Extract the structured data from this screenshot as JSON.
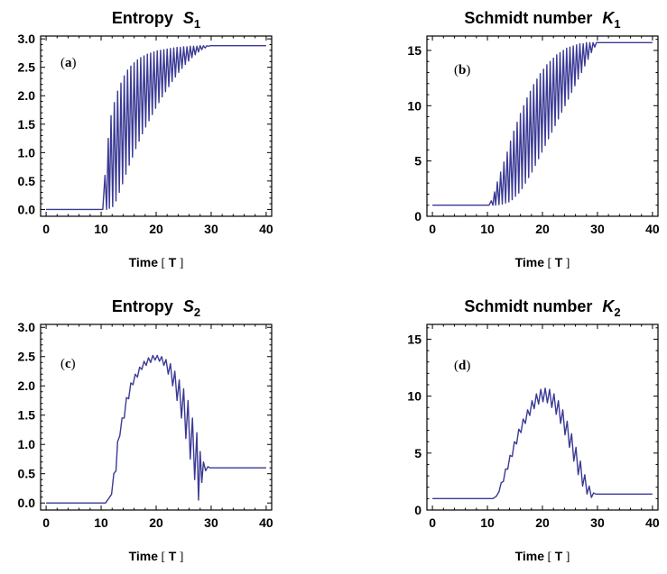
{
  "figure": {
    "line_color": "#3b3a95"
  },
  "chart_data": [
    {
      "type": "line",
      "id": "a",
      "title": "Entropy",
      "title_symbol": "S",
      "title_subscript": "1",
      "panel_label": "a",
      "xlabel": "Time",
      "xlabel_unit": "T",
      "xlim": [
        -1,
        41
      ],
      "ylim": [
        -0.12,
        3.05
      ],
      "xticks": [
        0,
        10,
        20,
        30,
        40
      ],
      "xtick_labels": [
        "0",
        "10",
        "20",
        "30",
        "40"
      ],
      "yticks": [
        0,
        0.5,
        1,
        1.5,
        2,
        2.5,
        3
      ],
      "ytick_labels": [
        "0.0",
        "0.5",
        "1.0",
        "1.5",
        "2.0",
        "2.5",
        "3.0"
      ],
      "grid": false,
      "series": [
        {
          "x": [
            0,
            10.3,
            10.7,
            11.0,
            11.3,
            11.5,
            11.8,
            12.1,
            12.4,
            12.7,
            13.0,
            13.3,
            13.6,
            13.9,
            14.2,
            14.5,
            14.8,
            15.1,
            15.4,
            15.7,
            16.0,
            16.3,
            16.6,
            16.9,
            17.2,
            17.5,
            17.8,
            18.1,
            18.4,
            18.7,
            19.0,
            19.3,
            19.6,
            19.9,
            20.2,
            20.5,
            20.8,
            21.1,
            21.4,
            21.7,
            22.0,
            22.3,
            22.6,
            22.9,
            23.2,
            23.5,
            23.8,
            24.1,
            24.4,
            24.7,
            25.0,
            25.3,
            25.6,
            25.9,
            26.2,
            26.5,
            26.8,
            27.1,
            27.4,
            27.7,
            28.0,
            28.3,
            28.6,
            28.9,
            29.2,
            29.5,
            29.8,
            30.1,
            30.5,
            40
          ],
          "y": [
            0,
            0,
            0.6,
            0,
            1.25,
            0.02,
            1.65,
            0.05,
            1.88,
            0.15,
            2.08,
            0.3,
            2.22,
            0.45,
            2.35,
            0.62,
            2.45,
            0.78,
            2.52,
            0.92,
            2.58,
            1.07,
            2.63,
            1.2,
            2.67,
            1.33,
            2.7,
            1.45,
            2.73,
            1.56,
            2.75,
            1.67,
            2.77,
            1.78,
            2.79,
            1.88,
            2.8,
            1.98,
            2.81,
            2.07,
            2.82,
            2.16,
            2.83,
            2.25,
            2.84,
            2.33,
            2.85,
            2.41,
            2.85,
            2.48,
            2.86,
            2.55,
            2.86,
            2.61,
            2.87,
            2.67,
            2.87,
            2.72,
            2.87,
            2.77,
            2.88,
            2.81,
            2.88,
            2.84,
            2.88,
            2.87,
            2.88,
            2.88,
            2.88,
            2.88
          ]
        }
      ]
    },
    {
      "type": "line",
      "id": "b",
      "title": "Schmidt number",
      "title_symbol": "K",
      "title_subscript": "1",
      "panel_label": "b",
      "xlabel": "Time",
      "xlabel_unit": "T",
      "xlim": [
        -1,
        41
      ],
      "ylim": [
        0,
        16.3
      ],
      "xticks": [
        0,
        10,
        20,
        30,
        40
      ],
      "xtick_labels": [
        "0",
        "10",
        "20",
        "30",
        "40"
      ],
      "yticks": [
        0,
        5,
        10,
        15
      ],
      "ytick_labels": [
        "0",
        "5",
        "10",
        "15"
      ],
      "grid": false,
      "series": [
        {
          "x": [
            0,
            10.3,
            10.7,
            11.0,
            11.3,
            11.5,
            11.8,
            12.1,
            12.4,
            12.7,
            13.0,
            13.3,
            13.6,
            13.9,
            14.2,
            14.5,
            14.8,
            15.1,
            15.4,
            15.7,
            16.0,
            16.3,
            16.6,
            16.9,
            17.2,
            17.5,
            17.8,
            18.1,
            18.4,
            18.7,
            19.0,
            19.3,
            19.6,
            19.9,
            20.2,
            20.5,
            20.8,
            21.1,
            21.4,
            21.7,
            22.0,
            22.3,
            22.6,
            22.9,
            23.2,
            23.5,
            23.8,
            24.1,
            24.4,
            24.7,
            25.0,
            25.3,
            25.6,
            25.9,
            26.2,
            26.5,
            26.8,
            27.1,
            27.4,
            27.7,
            28.0,
            28.3,
            28.6,
            28.9,
            29.2,
            29.5,
            29.8,
            30.1,
            30.5,
            40
          ],
          "y": [
            1,
            1,
            1.4,
            1,
            2.2,
            1,
            3.1,
            1.05,
            4.0,
            1.1,
            4.9,
            1.2,
            5.8,
            1.3,
            6.8,
            1.5,
            7.7,
            1.8,
            8.5,
            2.1,
            9.3,
            2.5,
            10.0,
            3.0,
            10.7,
            3.5,
            11.3,
            4.0,
            11.9,
            4.6,
            12.4,
            5.2,
            12.9,
            5.8,
            13.3,
            6.4,
            13.7,
            7.0,
            14.0,
            7.6,
            14.3,
            8.2,
            14.6,
            8.8,
            14.8,
            9.4,
            15.0,
            10.0,
            15.2,
            10.6,
            15.3,
            11.2,
            15.4,
            11.8,
            15.5,
            12.4,
            15.6,
            13.0,
            15.6,
            13.6,
            15.7,
            14.2,
            15.7,
            14.8,
            15.7,
            15.3,
            15.7,
            15.7,
            15.7,
            15.7
          ]
        }
      ]
    },
    {
      "type": "line",
      "id": "c",
      "title": "Entropy",
      "title_symbol": "S",
      "title_subscript": "2",
      "panel_label": "c",
      "xlabel": "Time",
      "xlabel_unit": "T",
      "xlim": [
        -1,
        41
      ],
      "ylim": [
        -0.12,
        3.05
      ],
      "xticks": [
        0,
        10,
        20,
        30,
        40
      ],
      "xtick_labels": [
        "0",
        "10",
        "20",
        "30",
        "40"
      ],
      "yticks": [
        0,
        0.5,
        1,
        1.5,
        2,
        2.5,
        3
      ],
      "ytick_labels": [
        "0.0",
        "0.5",
        "1.0",
        "1.5",
        "2.0",
        "2.5",
        "3.0"
      ],
      "grid": false,
      "series": [
        {
          "x": [
            0,
            10.8,
            11.4,
            11.9,
            12.3,
            12.7,
            13.0,
            13.4,
            13.8,
            14.2,
            14.6,
            15.0,
            15.4,
            15.8,
            16.2,
            16.6,
            17.0,
            17.4,
            17.8,
            18.2,
            18.6,
            19.0,
            19.4,
            19.8,
            20.2,
            20.6,
            21.0,
            21.4,
            21.8,
            22.2,
            22.6,
            23.0,
            23.4,
            23.8,
            24.2,
            24.6,
            25.0,
            25.4,
            25.8,
            26.2,
            26.6,
            27.0,
            27.4,
            27.7,
            28.0,
            28.3,
            28.6,
            29.0,
            29.4,
            29.8,
            30.2,
            40
          ],
          "y": [
            0,
            0,
            0.08,
            0.15,
            0.5,
            0.55,
            1.05,
            1.15,
            1.45,
            1.45,
            1.8,
            1.78,
            2.05,
            2.02,
            2.2,
            2.15,
            2.32,
            2.28,
            2.42,
            2.35,
            2.48,
            2.4,
            2.52,
            2.44,
            2.52,
            2.42,
            2.5,
            2.35,
            2.45,
            2.2,
            2.38,
            2.0,
            2.25,
            1.75,
            2.1,
            1.45,
            1.95,
            1.1,
            1.75,
            0.75,
            1.45,
            0.4,
            1.2,
            0.05,
            0.88,
            0.35,
            0.7,
            0.55,
            0.62,
            0.6,
            0.6,
            0.6
          ]
        }
      ]
    },
    {
      "type": "line",
      "id": "d",
      "title": "Schmidt number",
      "title_symbol": "K",
      "title_subscript": "2",
      "panel_label": "d",
      "xlabel": "Time",
      "xlabel_unit": "T",
      "xlim": [
        -1,
        41
      ],
      "ylim": [
        0,
        16.3
      ],
      "xticks": [
        0,
        10,
        20,
        30,
        40
      ],
      "xtick_labels": [
        "0",
        "10",
        "20",
        "30",
        "40"
      ],
      "yticks": [
        0,
        5,
        10,
        15
      ],
      "ytick_labels": [
        "0",
        "5",
        "10",
        "15"
      ],
      "grid": false,
      "series": [
        {
          "x": [
            0,
            11.0,
            11.6,
            12.1,
            12.5,
            12.9,
            13.3,
            13.7,
            14.1,
            14.5,
            14.9,
            15.3,
            15.7,
            16.1,
            16.5,
            16.9,
            17.3,
            17.7,
            18.1,
            18.5,
            18.9,
            19.3,
            19.7,
            20.1,
            20.5,
            20.9,
            21.3,
            21.7,
            22.1,
            22.5,
            22.9,
            23.3,
            23.7,
            24.1,
            24.5,
            24.9,
            25.3,
            25.7,
            26.1,
            26.5,
            26.9,
            27.3,
            27.7,
            28.1,
            28.5,
            28.9,
            29.3,
            29.7,
            30.1,
            40
          ],
          "y": [
            1,
            1,
            1.2,
            1.6,
            2.4,
            2.5,
            3.6,
            3.6,
            4.8,
            4.7,
            6.0,
            5.8,
            7.1,
            6.8,
            8.0,
            7.6,
            8.8,
            8.3,
            9.6,
            8.9,
            10.2,
            9.3,
            10.6,
            9.5,
            10.7,
            9.4,
            10.6,
            9.0,
            10.2,
            8.4,
            9.6,
            7.6,
            8.8,
            6.6,
            7.8,
            5.5,
            6.7,
            4.3,
            5.5,
            3.1,
            4.3,
            2.1,
            3.1,
            1.4,
            2.1,
            1.1,
            1.5,
            1.4,
            1.4,
            1.4
          ]
        }
      ]
    }
  ]
}
